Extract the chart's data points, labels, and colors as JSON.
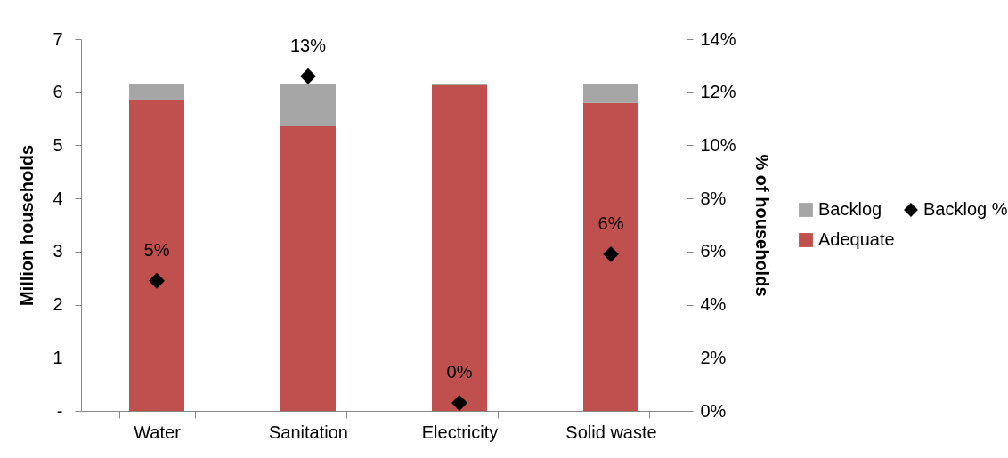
{
  "chart_data": {
    "type": "bar",
    "categories": [
      "Water",
      "Sanitation",
      "Electricity",
      "Solid waste"
    ],
    "stacked": true,
    "ylabel": "Million households",
    "y2label": "% of  households",
    "ylim": [
      0,
      7
    ],
    "yticks": [
      {
        "value": 0,
        "label": "-"
      },
      1,
      2,
      3,
      4,
      5,
      6,
      7
    ],
    "y2lim": [
      0,
      14
    ],
    "y2ticks": [
      {
        "value": 0,
        "label": "0%"
      },
      {
        "value": 2,
        "label": "2%"
      },
      {
        "value": 4,
        "label": "4%"
      },
      {
        "value": 6,
        "label": "6%"
      },
      {
        "value": 8,
        "label": "8%"
      },
      {
        "value": 10,
        "label": "10%"
      },
      {
        "value": 12,
        "label": "12%"
      },
      {
        "value": 14,
        "label": "14%"
      }
    ],
    "legend": "right",
    "marker": "diamond",
    "series": [
      {
        "name": "Adequate",
        "color": "#c0504d",
        "values": [
          5.86,
          5.36,
          6.13,
          5.8
        ]
      },
      {
        "name": "Backlog",
        "color": "#a6a6a6",
        "values": [
          0.3,
          0.8,
          0.03,
          0.36
        ]
      },
      {
        "name": "Backlog %",
        "type": "scatter",
        "axis": "y2",
        "color": "#000000",
        "values": [
          4.9,
          12.6,
          0.3,
          5.9
        ],
        "value_labels": [
          "5%",
          "13%",
          "0%",
          "6%"
        ]
      }
    ]
  }
}
